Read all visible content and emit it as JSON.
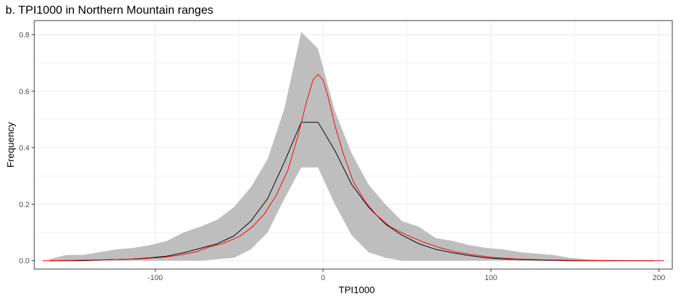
{
  "chart_data": {
    "type": "area",
    "title": "b. TPI1000 in Northern Mountain ranges",
    "xlabel": "TPI1000",
    "ylabel": "Frequency",
    "xlim": [
      -172,
      208
    ],
    "ylim": [
      -0.03,
      0.85
    ],
    "x_ticks": [
      -100,
      0,
      100,
      200
    ],
    "x_tick_labels": [
      "-100",
      "0",
      "100",
      "200"
    ],
    "y_ticks": [
      0.0,
      0.2,
      0.4,
      0.6,
      0.8
    ],
    "y_tick_labels": [
      "0.0",
      "0.2",
      "0.4",
      "0.6",
      "0.8"
    ],
    "grid": true,
    "legend": "none",
    "colors": {
      "band": "#bebebe",
      "mean": "#000000",
      "fit": "#ff0000",
      "grid": "#ebebeb",
      "panel_border": "#333333"
    },
    "series": [
      {
        "kind": "ribbon",
        "x": [
          -163,
          -153,
          -143,
          -133,
          -123,
          -113,
          -103,
          -93,
          -83,
          -73,
          -63,
          -53,
          -43,
          -33,
          -23,
          -13,
          -3,
          7,
          17,
          27,
          37,
          47,
          57,
          67,
          77,
          87,
          97,
          107,
          117,
          127,
          137,
          147,
          157,
          167,
          177,
          187,
          197
        ],
        "lower": [
          0,
          0,
          0,
          0,
          0,
          0,
          0,
          0,
          0,
          0,
          0.005,
          0.01,
          0.04,
          0.1,
          0.22,
          0.33,
          0.33,
          0.2,
          0.09,
          0.03,
          0.01,
          0,
          0,
          0,
          0,
          0,
          0,
          0,
          0,
          0,
          0,
          0,
          0,
          0,
          0,
          0,
          0
        ],
        "upper": [
          0.005,
          0.02,
          0.02,
          0.03,
          0.04,
          0.045,
          0.055,
          0.07,
          0.1,
          0.12,
          0.145,
          0.19,
          0.26,
          0.36,
          0.54,
          0.81,
          0.75,
          0.53,
          0.38,
          0.27,
          0.2,
          0.14,
          0.12,
          0.08,
          0.07,
          0.055,
          0.045,
          0.04,
          0.03,
          0.025,
          0.02,
          0.01,
          0.005,
          0.003,
          0.002,
          0.001,
          0.001
        ]
      },
      {
        "kind": "line",
        "color": "#000000",
        "x": [
          -163,
          -153,
          -143,
          -133,
          -123,
          -113,
          -103,
          -93,
          -83,
          -73,
          -63,
          -53,
          -43,
          -33,
          -23,
          -13,
          -3,
          7,
          17,
          27,
          37,
          47,
          57,
          67,
          77,
          87,
          97,
          107,
          117,
          127,
          137,
          147,
          157,
          167,
          177,
          187,
          197
        ],
        "y": [
          0,
          0,
          0,
          0.002,
          0.004,
          0.006,
          0.01,
          0.016,
          0.028,
          0.044,
          0.06,
          0.088,
          0.14,
          0.22,
          0.35,
          0.49,
          0.49,
          0.39,
          0.27,
          0.19,
          0.13,
          0.09,
          0.06,
          0.04,
          0.028,
          0.018,
          0.01,
          0.006,
          0.004,
          0.002,
          0.001,
          0,
          0,
          0,
          0,
          0,
          0
        ]
      },
      {
        "kind": "line",
        "color": "#ff0000",
        "x": [
          -167,
          -150,
          -130,
          -110,
          -95,
          -85,
          -75,
          -68,
          -60,
          -50,
          -42,
          -35,
          -28,
          -21,
          -15,
          -10,
          -6,
          -3,
          0,
          3,
          7,
          12,
          18,
          25,
          32,
          40,
          50,
          60,
          70,
          80,
          90,
          100,
          115,
          130,
          150,
          170,
          190,
          203
        ],
        "y": [
          0,
          0.001,
          0.003,
          0.006,
          0.012,
          0.02,
          0.032,
          0.048,
          0.06,
          0.085,
          0.12,
          0.165,
          0.23,
          0.32,
          0.44,
          0.56,
          0.64,
          0.66,
          0.64,
          0.58,
          0.48,
          0.38,
          0.28,
          0.21,
          0.16,
          0.12,
          0.09,
          0.065,
          0.045,
          0.03,
          0.02,
          0.012,
          0.006,
          0.003,
          0.001,
          0,
          0,
          0
        ]
      }
    ]
  }
}
